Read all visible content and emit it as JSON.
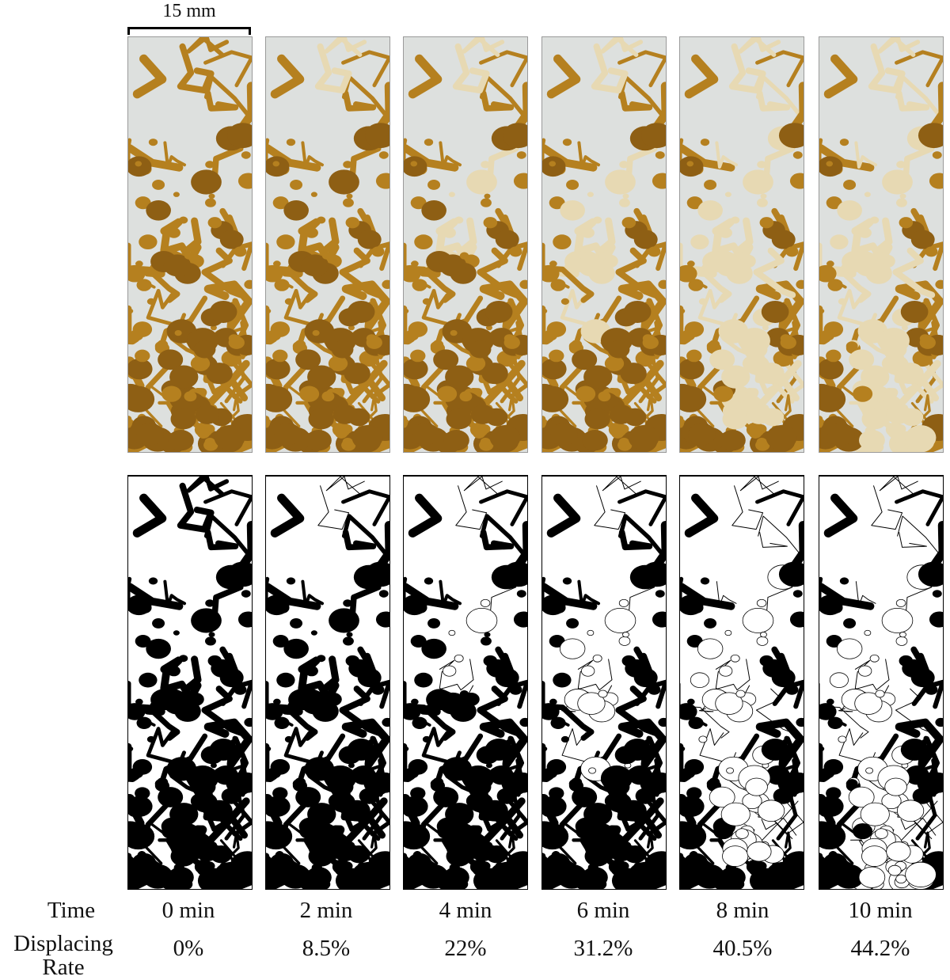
{
  "scale_bar": {
    "label": "15 mm"
  },
  "rows": {
    "time_label": "Time",
    "rate_label": [
      "Displacing",
      "Rate"
    ]
  },
  "colors": {
    "oil": "#b5801f",
    "oil_dark": "#8e5f14",
    "displaced": "#e7d9b3",
    "glass": "#dde0de",
    "binary_pore": "#000000"
  },
  "frames": [
    {
      "time": "0 min",
      "rate": "0%",
      "displaced_fraction": 0
    },
    {
      "time": "2 min",
      "rate": "8.5%",
      "displaced_fraction": 0.085
    },
    {
      "time": "4 min",
      "rate": "22%",
      "displaced_fraction": 0.22
    },
    {
      "time": "6 min",
      "rate": "31.2%",
      "displaced_fraction": 0.312
    },
    {
      "time": "8 min",
      "rate": "40.5%",
      "displaced_fraction": 0.405
    },
    {
      "time": "10 min",
      "rate": "44.2%",
      "displaced_fraction": 0.442
    }
  ]
}
